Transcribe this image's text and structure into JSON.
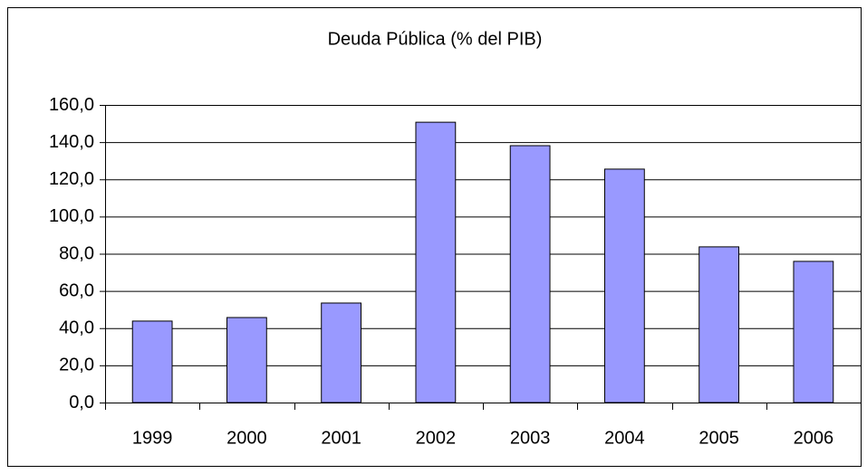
{
  "chart_data": {
    "type": "bar",
    "title": "Deuda Pública (% del PIB)",
    "categories": [
      "1999",
      "2000",
      "2001",
      "2002",
      "2003",
      "2004",
      "2005",
      "2006"
    ],
    "values": [
      43.8,
      45.7,
      53.5,
      150.7,
      138.1,
      125.5,
      83.7,
      75.9
    ],
    "color": "#9999ff",
    "ylim": [
      0,
      160
    ],
    "yticks": [
      {
        "value": 0,
        "label": "0,0"
      },
      {
        "value": 20,
        "label": "20,0"
      },
      {
        "value": 40,
        "label": "40,0"
      },
      {
        "value": 60,
        "label": "60,0"
      },
      {
        "value": 80,
        "label": "80,0"
      },
      {
        "value": 100,
        "label": "100,0"
      },
      {
        "value": 120,
        "label": "120,0"
      },
      {
        "value": 140,
        "label": "140,0"
      },
      {
        "value": 160,
        "label": "160,0"
      }
    ],
    "grid": true
  }
}
